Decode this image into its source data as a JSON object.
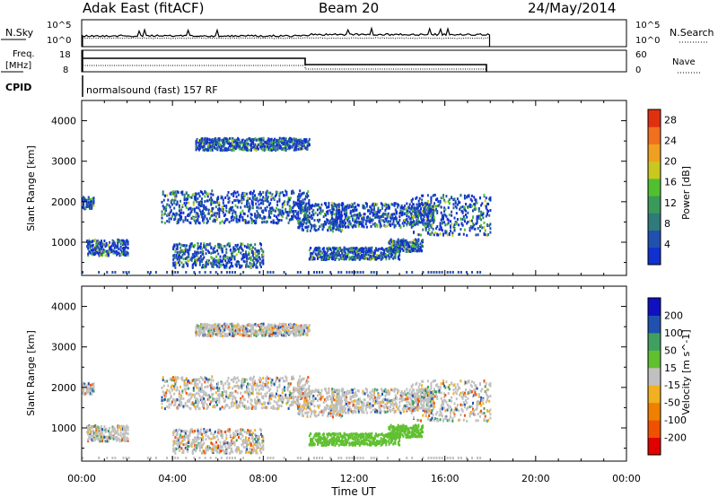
{
  "header": {
    "title": "Adak East (fitACF)",
    "beam": "Beam 20",
    "date": "24/May/2014"
  },
  "aux_panels": {
    "nsky_label": "N.Sky",
    "nsky_ticks": [
      "10^5",
      "10^0"
    ],
    "nsearch_label": "N.Search",
    "nsearch_ticks": [
      "10^5",
      "10^0"
    ],
    "freq_label": "Freq.",
    "freq_unit": "[MHz]",
    "freq_ticks": [
      "18",
      "8"
    ],
    "nave_label": "Nave",
    "nave_ticks": [
      "60",
      "0"
    ],
    "cpid_label": "CPID",
    "cpid_value": "normalsound (fast) 157 RF"
  },
  "colors": {
    "power": [
      "#1030d0",
      "#2050b0",
      "#2f7a7a",
      "#3a9a5a",
      "#50c030",
      "#c8c820",
      "#f0a020",
      "#f07020",
      "#e03010"
    ],
    "velocity": [
      "#e00000",
      "#f05000",
      "#f08000",
      "#f0b020",
      "#c0c0c0",
      "#60c030",
      "#40a060",
      "#2050b0",
      "#1010c0"
    ]
  },
  "chart_data": [
    {
      "type": "heatmap",
      "name": "power-panel",
      "title": "",
      "xlabel": "",
      "ylabel": "Slant Range [km]",
      "x_ticks": [
        "00:00",
        "04:00",
        "08:00",
        "12:00",
        "16:00",
        "20:00",
        "00:00"
      ],
      "xlim": [
        0,
        24
      ],
      "ylim": [
        180,
        4500
      ],
      "y_ticks": [
        1000,
        2000,
        3000,
        4000
      ],
      "colorbar": {
        "label": "Power [dB]",
        "ticks": [
          4,
          8,
          12,
          16,
          20,
          24,
          28
        ],
        "range": [
          0,
          30
        ]
      },
      "echo_regions": [
        {
          "t": [
            0.0,
            0.5
          ],
          "range": [
            1850,
            2150
          ]
        },
        {
          "t": [
            0.2,
            2.0
          ],
          "range": [
            700,
            1100
          ]
        },
        {
          "t": [
            3.5,
            10.0
          ],
          "range": [
            1500,
            2300
          ]
        },
        {
          "t": [
            4.0,
            8.0
          ],
          "range": [
            400,
            1000
          ]
        },
        {
          "t": [
            9.5,
            11.5
          ],
          "range": [
            1300,
            2000
          ]
        },
        {
          "t": [
            10.0,
            14.0
          ],
          "range": [
            600,
            900
          ]
        },
        {
          "t": [
            11.0,
            15.5
          ],
          "range": [
            1400,
            2000
          ]
        },
        {
          "t": [
            13.5,
            15.0
          ],
          "range": [
            800,
            1100
          ]
        },
        {
          "t": [
            14.5,
            18.0
          ],
          "range": [
            1200,
            2200
          ]
        },
        {
          "t": [
            5.0,
            10.0
          ],
          "range": [
            3300,
            3600
          ]
        }
      ]
    },
    {
      "type": "heatmap",
      "name": "velocity-panel",
      "title": "",
      "xlabel": "Time UT",
      "ylabel": "Slant Range [km]",
      "x_ticks": [
        "00:00",
        "04:00",
        "08:00",
        "12:00",
        "16:00",
        "20:00",
        "00:00"
      ],
      "xlim": [
        0,
        24
      ],
      "ylim": [
        180,
        4500
      ],
      "y_ticks": [
        1000,
        2000,
        3000,
        4000
      ],
      "colorbar": {
        "label": "Velocity [m s^-1]",
        "ticks": [
          200,
          100,
          50,
          15,
          -15,
          -50,
          -100,
          -200
        ]
      },
      "echo_regions": [
        {
          "t": [
            0.0,
            0.5
          ],
          "range": [
            1850,
            2150
          ]
        },
        {
          "t": [
            0.2,
            2.0
          ],
          "range": [
            700,
            1100
          ]
        },
        {
          "t": [
            3.5,
            10.0
          ],
          "range": [
            1500,
            2300
          ]
        },
        {
          "t": [
            4.0,
            8.0
          ],
          "range": [
            400,
            1000
          ]
        },
        {
          "t": [
            9.5,
            11.5
          ],
          "range": [
            1300,
            2000
          ]
        },
        {
          "t": [
            10.0,
            14.0
          ],
          "range": [
            600,
            900
          ]
        },
        {
          "t": [
            11.0,
            15.5
          ],
          "range": [
            1400,
            2000
          ]
        },
        {
          "t": [
            13.5,
            15.0
          ],
          "range": [
            800,
            1100
          ]
        },
        {
          "t": [
            14.5,
            18.0
          ],
          "range": [
            1200,
            2200
          ]
        },
        {
          "t": [
            5.0,
            10.0
          ],
          "range": [
            3300,
            3600
          ]
        }
      ]
    }
  ]
}
